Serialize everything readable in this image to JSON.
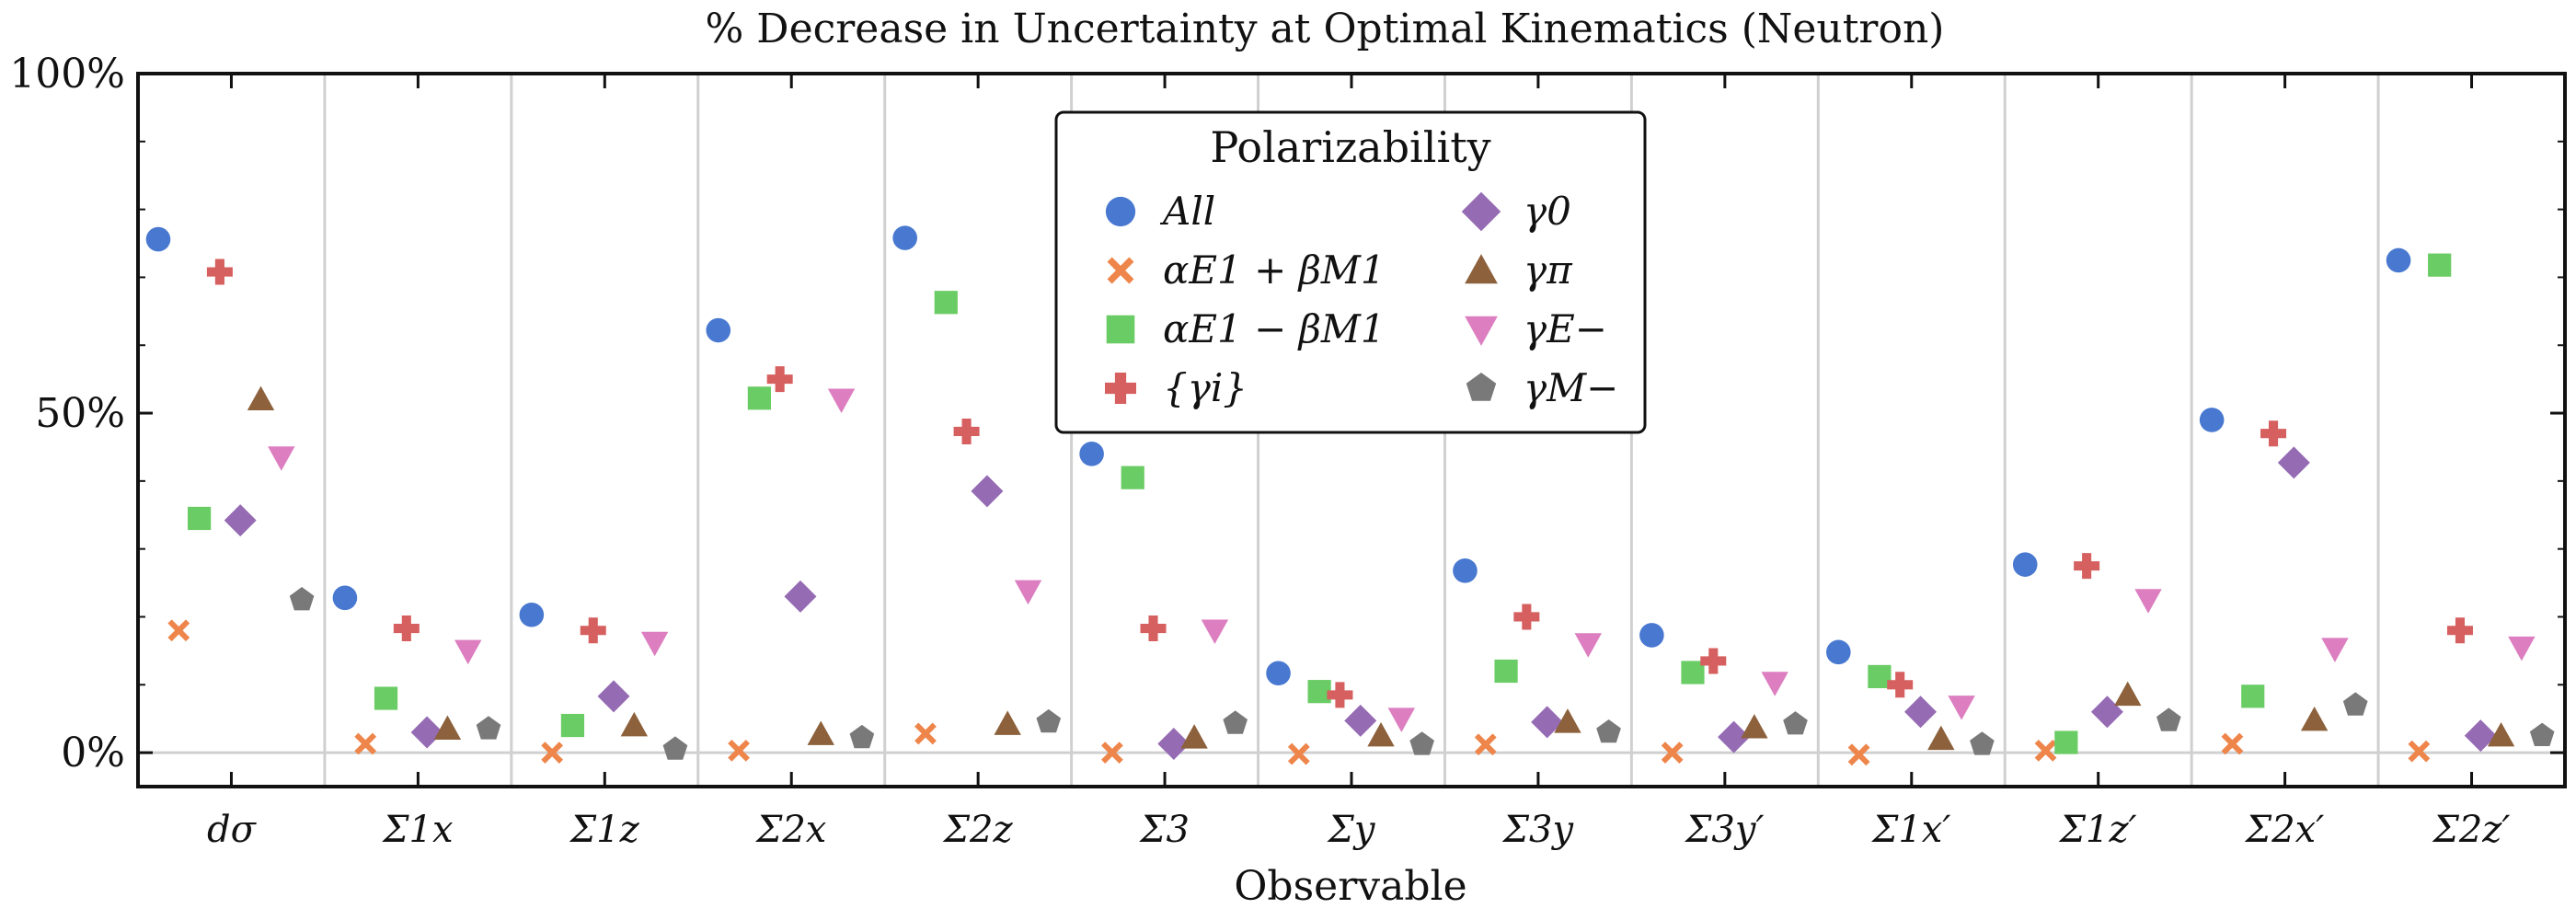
{
  "chart_data": {
    "type": "scatter",
    "title": "% Decrease in Uncertainty at Optimal Kinematics (Neutron)",
    "xlabel": "Observable",
    "ylabel": "",
    "ylim": [
      -0.05,
      1.0
    ],
    "yticks": [
      0,
      0.5,
      1.0
    ],
    "ytick_labels": [
      "0%",
      "50%",
      "100%"
    ],
    "grid": "vertical separators between observables, horizontal line at 0%",
    "categories": [
      "dσ",
      "Σ1x",
      "Σ1z",
      "Σ2x",
      "Σ2z",
      "Σ3",
      "Σy",
      "Σ3y",
      "Σ3y′",
      "Σ1x′",
      "Σ1z′",
      "Σ2x′",
      "Σ2z′"
    ],
    "legend_title": "Polarizability",
    "legend_position": "top-center",
    "series": [
      {
        "name": "All",
        "marker": "circle",
        "color": "#4878d0",
        "values": [
          0.756,
          0.228,
          0.203,
          0.622,
          0.758,
          0.44,
          0.117,
          0.268,
          0.173,
          0.148,
          0.277,
          0.49,
          0.725
        ]
      },
      {
        "name": "αE1 + βM1",
        "marker": "x",
        "color": "#ee854a",
        "values": [
          0.18,
          0.013,
          0.0,
          0.003,
          0.028,
          0.0,
          -0.002,
          0.012,
          0.0,
          -0.003,
          0.003,
          0.013,
          0.002
        ]
      },
      {
        "name": "αE1 − βM1",
        "marker": "square",
        "color": "#6acc64",
        "values": [
          0.345,
          0.08,
          0.04,
          0.522,
          0.663,
          0.405,
          0.09,
          0.12,
          0.118,
          0.112,
          0.015,
          0.083,
          0.718
        ]
      },
      {
        "name": "{γi}",
        "marker": "plus",
        "color": "#d65f5f",
        "values": [
          0.708,
          0.183,
          0.18,
          0.55,
          0.473,
          0.183,
          0.085,
          0.2,
          0.135,
          0.1,
          0.275,
          0.47,
          0.18
        ]
      },
      {
        "name": "γ0",
        "marker": "diamond",
        "color": "#956cb4",
        "values": [
          0.342,
          0.03,
          0.083,
          0.23,
          0.385,
          0.013,
          0.047,
          0.045,
          0.023,
          0.06,
          0.06,
          0.427,
          0.025
        ]
      },
      {
        "name": "γπ",
        "marker": "triangle-up",
        "color": "#8c613c",
        "values": [
          0.52,
          0.035,
          0.04,
          0.027,
          0.042,
          0.022,
          0.025,
          0.045,
          0.037,
          0.02,
          0.085,
          0.048,
          0.025
        ]
      },
      {
        "name": "γE−",
        "marker": "triangle-down",
        "color": "#dc7ec0",
        "values": [
          0.435,
          0.15,
          0.162,
          0.52,
          0.238,
          0.18,
          0.05,
          0.16,
          0.103,
          0.068,
          0.225,
          0.153,
          0.155
        ]
      },
      {
        "name": "γM−",
        "marker": "pentagon",
        "color": "#797979",
        "values": [
          0.225,
          0.035,
          0.005,
          0.022,
          0.045,
          0.043,
          0.012,
          0.03,
          0.042,
          0.012,
          0.047,
          0.07,
          0.025
        ]
      }
    ]
  }
}
